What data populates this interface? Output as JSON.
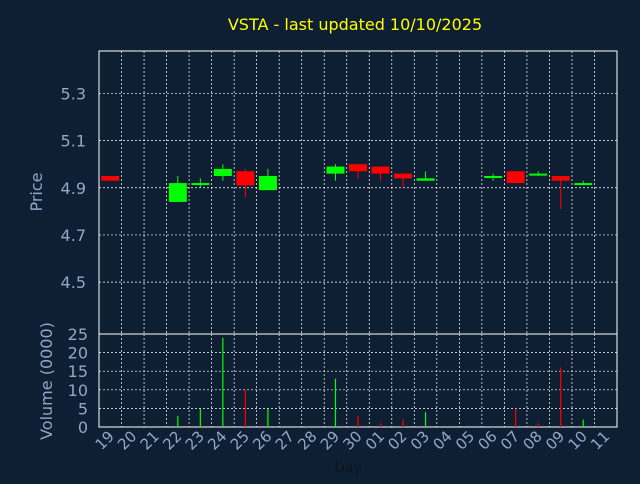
{
  "chart_data": [
    {
      "type": "candlestick",
      "title": "VSTA - last updated 10/10/2025",
      "ylabel": "Price",
      "ylim": [
        4.28,
        5.48
      ],
      "yticks": [
        "5.3",
        "5.1",
        "4.9",
        "4.7",
        "4.5"
      ],
      "ytick_values": [
        5.3,
        5.1,
        4.9,
        4.7,
        4.5
      ],
      "grid": true,
      "colors": {
        "up": "#00ff00",
        "down": "#ff0000",
        "title": "#ffff00",
        "axis_text": "#8fa8c8",
        "grid": "#ffffff",
        "background": "#0f1f33"
      },
      "candles": [
        {
          "day": "19",
          "open": 4.95,
          "close": 4.93,
          "high": 4.95,
          "low": 4.93
        },
        {
          "day": "22",
          "open": 4.84,
          "close": 4.92,
          "high": 4.95,
          "low": 4.84
        },
        {
          "day": "23",
          "open": 4.92,
          "close": 4.92,
          "high": 4.94,
          "low": 4.9
        },
        {
          "day": "24",
          "open": 4.95,
          "close": 4.98,
          "high": 5.0,
          "low": 4.93
        },
        {
          "day": "25",
          "open": 4.97,
          "close": 4.91,
          "high": 4.98,
          "low": 4.86
        },
        {
          "day": "26",
          "open": 4.89,
          "close": 4.95,
          "high": 4.98,
          "low": 4.89
        },
        {
          "day": "29",
          "open": 4.96,
          "close": 4.99,
          "high": 5.0,
          "low": 4.93
        },
        {
          "day": "30",
          "open": 5.0,
          "close": 4.97,
          "high": 5.0,
          "low": 4.94
        },
        {
          "day": "01",
          "open": 4.99,
          "close": 4.96,
          "high": 4.99,
          "low": 4.93
        },
        {
          "day": "02",
          "open": 4.96,
          "close": 4.94,
          "high": 4.96,
          "low": 4.9
        },
        {
          "day": "03",
          "open": 4.93,
          "close": 4.94,
          "high": 4.97,
          "low": 4.93
        },
        {
          "day": "06",
          "open": 4.95,
          "close": 4.95,
          "high": 4.96,
          "low": 4.93
        },
        {
          "day": "07",
          "open": 4.97,
          "close": 4.92,
          "high": 4.97,
          "low": 4.92
        },
        {
          "day": "08",
          "open": 4.96,
          "close": 4.96,
          "high": 4.97,
          "low": 4.95
        },
        {
          "day": "09",
          "open": 4.95,
          "close": 4.93,
          "high": 4.95,
          "low": 4.81
        },
        {
          "day": "10",
          "open": 4.92,
          "close": 4.92,
          "high": 4.93,
          "low": 4.91
        }
      ]
    },
    {
      "type": "bar",
      "ylabel": "Volume (0000)",
      "xlabel": "Day",
      "ylim": [
        0,
        25
      ],
      "yticks": [
        "25",
        "20",
        "15",
        "10",
        "5",
        "0"
      ],
      "ytick_values": [
        25,
        20,
        15,
        10,
        5,
        0
      ],
      "grid": true,
      "categories": [
        "19",
        "20",
        "21",
        "22",
        "23",
        "24",
        "25",
        "26",
        "27",
        "28",
        "29",
        "30",
        "01",
        "02",
        "03",
        "04",
        "05",
        "06",
        "07",
        "08",
        "09",
        "10",
        "11"
      ],
      "bars": [
        {
          "day": "22",
          "value": 3,
          "direction": "up"
        },
        {
          "day": "23",
          "value": 5,
          "direction": "up"
        },
        {
          "day": "24",
          "value": 24,
          "direction": "up"
        },
        {
          "day": "25",
          "value": 10,
          "direction": "down"
        },
        {
          "day": "26",
          "value": 5,
          "direction": "up"
        },
        {
          "day": "29",
          "value": 13,
          "direction": "up"
        },
        {
          "day": "30",
          "value": 3,
          "direction": "down"
        },
        {
          "day": "01",
          "value": 1,
          "direction": "down"
        },
        {
          "day": "02",
          "value": 2,
          "direction": "down"
        },
        {
          "day": "03",
          "value": 4,
          "direction": "up"
        },
        {
          "day": "07",
          "value": 5,
          "direction": "down"
        },
        {
          "day": "08",
          "value": 1,
          "direction": "down"
        },
        {
          "day": "09",
          "value": 16,
          "direction": "down"
        },
        {
          "day": "10",
          "value": 2,
          "direction": "up"
        }
      ]
    }
  ]
}
